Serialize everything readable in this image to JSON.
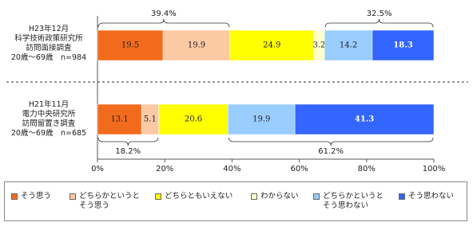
{
  "chart_data": {
    "type": "stacked-bar-horizontal-percent",
    "categories": [
      "H23年12月\n科学技術政策研究所\n訪問面接調査\n20歳～69歳　n=984",
      "H21年11月\n電力中央研究所\n訪問留置き調査\n20歳～69歳　n=685"
    ],
    "series": [
      {
        "name": "そう思う",
        "color": "#f26b1d",
        "values": [
          19.5,
          13.1
        ]
      },
      {
        "name": "どちらかというと\nそう思う",
        "color": "#fbc9a3",
        "values": [
          19.9,
          5.1
        ]
      },
      {
        "name": "どちらともいえない",
        "color": "#ffff00",
        "values": [
          24.9,
          20.6
        ]
      },
      {
        "name": "わからない",
        "color": "#ffffcc",
        "values": [
          3.2,
          null
        ]
      },
      {
        "name": "どちらかというと\nそう思わない",
        "color": "#99ccff",
        "values": [
          14.2,
          19.9
        ]
      },
      {
        "name": "そう思わない",
        "color": "#3366ff",
        "values": [
          18.3,
          41.3
        ]
      }
    ],
    "annotations": [
      "39.4%",
      "32.5%",
      "18.2%",
      "61.2%"
    ],
    "xlim": [
      0,
      100
    ],
    "xticks": [
      {
        "value": 0,
        "label": "0%"
      },
      {
        "value": 20,
        "label": "20%"
      },
      {
        "value": 40,
        "label": "40%"
      },
      {
        "value": 60,
        "label": "60%"
      },
      {
        "value": 80,
        "label": "80%"
      },
      {
        "value": 100,
        "label": "100%"
      }
    ]
  }
}
